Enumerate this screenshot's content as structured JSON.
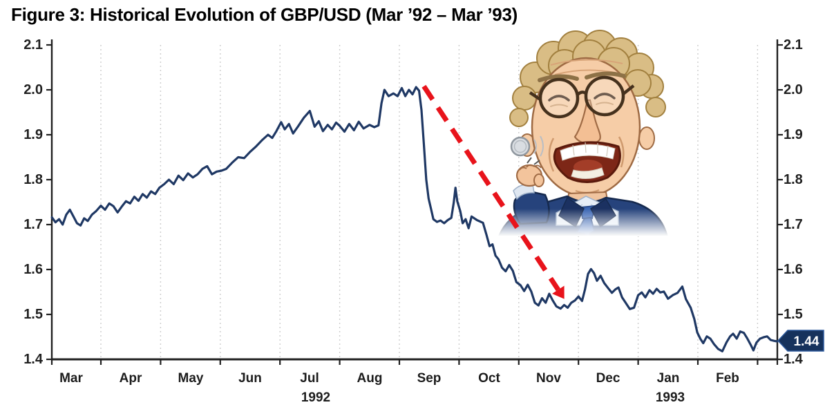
{
  "title": "Figure 3: Historical Evolution of GBP/USD (Mar ’92 – Mar ’93)",
  "colors": {
    "line": "#1f3864",
    "arrow": "#e8131b",
    "grid": "#cccccc",
    "axis": "#1f1f1f",
    "badge_bg": "#16325c",
    "badge_border": "#2f5b9d",
    "badge_text": "#ffffff"
  },
  "y_axis": {
    "ticks": [
      "2.1",
      "2.0",
      "1.9",
      "1.8",
      "1.7",
      "1.6",
      "1.5",
      "1.4"
    ],
    "min": 1.4,
    "max": 2.1
  },
  "x_axis": {
    "months": [
      "Mar",
      "Apr",
      "May",
      "Jun",
      "Jul",
      "Aug",
      "Sep",
      "Oct",
      "Nov",
      "Dec",
      "Jan",
      "Feb"
    ],
    "years": [
      "1992",
      "1993"
    ]
  },
  "badge": {
    "label": "1.44"
  },
  "illustration": {
    "name": "soros-caricature-coin-flip"
  },
  "chart_data": {
    "type": "line",
    "title": "Figure 3: Historical Evolution of GBP/USD (Mar ’92 – Mar ’93)",
    "ylim": [
      1.4,
      2.1
    ],
    "y_ticks": [
      2.1,
      2.0,
      1.9,
      1.8,
      1.7,
      1.6,
      1.5,
      1.4
    ],
    "x_tick_labels": [
      "Mar",
      "Apr",
      "May",
      "Jun",
      "Jul",
      "Aug",
      "Sep",
      "Oct",
      "Nov",
      "Dec",
      "Jan",
      "Feb"
    ],
    "x_years": [
      "1992",
      "1993"
    ],
    "grid": "vertical-dashed-monthly",
    "end_value_label": "1.44",
    "annotation_arrow": {
      "start": {
        "m": 6.41,
        "v": 2.008
      },
      "end": {
        "m": 8.66,
        "v": 1.555
      }
    },
    "series": [
      {
        "name": "GBP/USD",
        "x_unit": "months_since_1992-03-01",
        "points": [
          [
            0.18,
            1.716
          ],
          [
            0.24,
            1.705
          ],
          [
            0.3,
            1.712
          ],
          [
            0.36,
            1.7
          ],
          [
            0.42,
            1.722
          ],
          [
            0.48,
            1.733
          ],
          [
            0.54,
            1.718
          ],
          [
            0.6,
            1.703
          ],
          [
            0.66,
            1.698
          ],
          [
            0.72,
            1.714
          ],
          [
            0.78,
            1.708
          ],
          [
            0.85,
            1.722
          ],
          [
            0.92,
            1.73
          ],
          [
            1.0,
            1.742
          ],
          [
            1.07,
            1.733
          ],
          [
            1.14,
            1.747
          ],
          [
            1.21,
            1.741
          ],
          [
            1.28,
            1.727
          ],
          [
            1.35,
            1.74
          ],
          [
            1.42,
            1.752
          ],
          [
            1.49,
            1.747
          ],
          [
            1.56,
            1.762
          ],
          [
            1.63,
            1.753
          ],
          [
            1.7,
            1.768
          ],
          [
            1.77,
            1.76
          ],
          [
            1.84,
            1.774
          ],
          [
            1.91,
            1.768
          ],
          [
            1.98,
            1.782
          ],
          [
            2.06,
            1.79
          ],
          [
            2.14,
            1.8
          ],
          [
            2.22,
            1.79
          ],
          [
            2.3,
            1.809
          ],
          [
            2.38,
            1.799
          ],
          [
            2.46,
            1.814
          ],
          [
            2.54,
            1.805
          ],
          [
            2.62,
            1.812
          ],
          [
            2.7,
            1.824
          ],
          [
            2.78,
            1.83
          ],
          [
            2.86,
            1.812
          ],
          [
            2.94,
            1.818
          ],
          [
            3.02,
            1.82
          ],
          [
            3.1,
            1.824
          ],
          [
            3.2,
            1.838
          ],
          [
            3.3,
            1.85
          ],
          [
            3.4,
            1.848
          ],
          [
            3.5,
            1.862
          ],
          [
            3.6,
            1.874
          ],
          [
            3.7,
            1.888
          ],
          [
            3.8,
            1.9
          ],
          [
            3.87,
            1.893
          ],
          [
            3.94,
            1.908
          ],
          [
            4.02,
            1.928
          ],
          [
            4.08,
            1.912
          ],
          [
            4.15,
            1.924
          ],
          [
            4.22,
            1.903
          ],
          [
            4.3,
            1.918
          ],
          [
            4.4,
            1.938
          ],
          [
            4.5,
            1.953
          ],
          [
            4.58,
            1.918
          ],
          [
            4.65,
            1.93
          ],
          [
            4.72,
            1.908
          ],
          [
            4.8,
            1.922
          ],
          [
            4.87,
            1.912
          ],
          [
            4.94,
            1.927
          ],
          [
            5.0,
            1.92
          ],
          [
            5.08,
            1.907
          ],
          [
            5.16,
            1.924
          ],
          [
            5.24,
            1.91
          ],
          [
            5.32,
            1.929
          ],
          [
            5.4,
            1.914
          ],
          [
            5.5,
            1.922
          ],
          [
            5.58,
            1.917
          ],
          [
            5.65,
            1.921
          ],
          [
            5.7,
            1.97
          ],
          [
            5.75,
            2.0
          ],
          [
            5.82,
            1.986
          ],
          [
            5.9,
            1.992
          ],
          [
            5.97,
            1.986
          ],
          [
            6.04,
            2.004
          ],
          [
            6.1,
            1.986
          ],
          [
            6.16,
            2.0
          ],
          [
            6.22,
            1.99
          ],
          [
            6.28,
            2.006
          ],
          [
            6.33,
            1.998
          ],
          [
            6.37,
            1.955
          ],
          [
            6.41,
            1.88
          ],
          [
            6.45,
            1.8
          ],
          [
            6.49,
            1.758
          ],
          [
            6.53,
            1.735
          ],
          [
            6.57,
            1.712
          ],
          [
            6.63,
            1.706
          ],
          [
            6.69,
            1.709
          ],
          [
            6.75,
            1.703
          ],
          [
            6.81,
            1.71
          ],
          [
            6.87,
            1.715
          ],
          [
            6.91,
            1.748
          ],
          [
            6.94,
            1.782
          ],
          [
            6.97,
            1.752
          ],
          [
            7.02,
            1.73
          ],
          [
            7.06,
            1.703
          ],
          [
            7.11,
            1.712
          ],
          [
            7.16,
            1.692
          ],
          [
            7.21,
            1.718
          ],
          [
            7.3,
            1.71
          ],
          [
            7.4,
            1.704
          ],
          [
            7.46,
            1.677
          ],
          [
            7.51,
            1.652
          ],
          [
            7.56,
            1.656
          ],
          [
            7.61,
            1.631
          ],
          [
            7.66,
            1.623
          ],
          [
            7.72,
            1.604
          ],
          [
            7.78,
            1.596
          ],
          [
            7.84,
            1.61
          ],
          [
            7.9,
            1.597
          ],
          [
            7.96,
            1.572
          ],
          [
            8.03,
            1.565
          ],
          [
            8.09,
            1.552
          ],
          [
            8.15,
            1.566
          ],
          [
            8.21,
            1.551
          ],
          [
            8.27,
            1.526
          ],
          [
            8.33,
            1.52
          ],
          [
            8.39,
            1.536
          ],
          [
            8.45,
            1.526
          ],
          [
            8.51,
            1.546
          ],
          [
            8.57,
            1.531
          ],
          [
            8.63,
            1.518
          ],
          [
            8.7,
            1.513
          ],
          [
            8.76,
            1.521
          ],
          [
            8.82,
            1.515
          ],
          [
            8.88,
            1.526
          ],
          [
            8.94,
            1.531
          ],
          [
            9.0,
            1.54
          ],
          [
            9.06,
            1.53
          ],
          [
            9.11,
            1.556
          ],
          [
            9.16,
            1.59
          ],
          [
            9.21,
            1.601
          ],
          [
            9.26,
            1.592
          ],
          [
            9.31,
            1.575
          ],
          [
            9.37,
            1.586
          ],
          [
            9.43,
            1.57
          ],
          [
            9.5,
            1.558
          ],
          [
            9.56,
            1.548
          ],
          [
            9.62,
            1.556
          ],
          [
            9.67,
            1.56
          ],
          [
            9.73,
            1.538
          ],
          [
            9.79,
            1.526
          ],
          [
            9.86,
            1.512
          ],
          [
            9.93,
            1.515
          ],
          [
            10.0,
            1.543
          ],
          [
            10.06,
            1.549
          ],
          [
            10.12,
            1.538
          ],
          [
            10.19,
            1.554
          ],
          [
            10.25,
            1.546
          ],
          [
            10.31,
            1.557
          ],
          [
            10.37,
            1.549
          ],
          [
            10.43,
            1.551
          ],
          [
            10.5,
            1.535
          ],
          [
            10.58,
            1.543
          ],
          [
            10.66,
            1.548
          ],
          [
            10.74,
            1.562
          ],
          [
            10.8,
            1.534
          ],
          [
            10.88,
            1.515
          ],
          [
            10.94,
            1.49
          ],
          [
            10.99,
            1.46
          ],
          [
            11.04,
            1.446
          ],
          [
            11.09,
            1.436
          ],
          [
            11.15,
            1.451
          ],
          [
            11.21,
            1.446
          ],
          [
            11.27,
            1.434
          ],
          [
            11.34,
            1.423
          ],
          [
            11.41,
            1.418
          ],
          [
            11.48,
            1.438
          ],
          [
            11.54,
            1.451
          ],
          [
            11.59,
            1.457
          ],
          [
            11.65,
            1.446
          ],
          [
            11.71,
            1.462
          ],
          [
            11.77,
            1.459
          ],
          [
            11.83,
            1.446
          ],
          [
            11.89,
            1.431
          ],
          [
            11.93,
            1.42
          ],
          [
            11.98,
            1.437
          ],
          [
            12.04,
            1.446
          ],
          [
            12.1,
            1.449
          ],
          [
            12.16,
            1.451
          ],
          [
            12.22,
            1.443
          ],
          [
            12.28,
            1.441
          ],
          [
            12.33,
            1.44
          ]
        ]
      }
    ]
  }
}
